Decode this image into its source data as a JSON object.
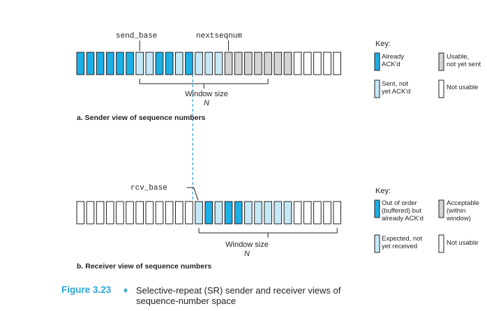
{
  "colors": {
    "acked": "#1bafe6",
    "sent_not_acked": "#c5e8f7",
    "usable": "#d3d4d6",
    "not_usable": "#ffffff",
    "outline": "#231f20",
    "dashed_line": "#2aa3d8",
    "caption_accent": "#2aa3d8"
  },
  "sender": {
    "slots": [
      "acked",
      "acked",
      "acked",
      "acked",
      "acked",
      "acked",
      "sent",
      "sent",
      "acked",
      "acked",
      "sent",
      "acked",
      "sent",
      "sent",
      "sent",
      "usable",
      "usable",
      "usable",
      "usable",
      "usable",
      "usable",
      "usable",
      "empty",
      "empty",
      "empty",
      "empty",
      "empty"
    ],
    "send_base_label": "send_base",
    "nextseqnum_label": "nextseqnum",
    "window_label": "Window size",
    "window_symbol": "N",
    "subcaption": "a. Sender view of sequence numbers",
    "key": {
      "title": "Key:",
      "items": [
        {
          "color": "acked",
          "label": [
            "Already",
            "ACK'd"
          ]
        },
        {
          "color": "usable",
          "label": [
            "Usable,",
            "not yet sent"
          ]
        },
        {
          "color": "sent_not_acked",
          "label": [
            "Sent, not",
            "yet ACK'd"
          ]
        },
        {
          "color": "not_usable",
          "label": [
            "Not usable"
          ]
        }
      ]
    }
  },
  "receiver": {
    "slots": [
      "empty",
      "empty",
      "empty",
      "empty",
      "empty",
      "empty",
      "empty",
      "empty",
      "empty",
      "empty",
      "empty",
      "empty",
      "sent",
      "acked",
      "sent",
      "acked",
      "acked",
      "sent",
      "sent",
      "sent",
      "sent",
      "sent",
      "empty",
      "empty",
      "empty",
      "empty",
      "empty"
    ],
    "rcv_base_label": "rcv_base",
    "window_label": "Window size",
    "window_symbol": "N",
    "subcaption": "b. Receiver view of sequence numbers",
    "key": {
      "title": "Key:",
      "items": [
        {
          "color": "acked",
          "label": [
            "Out of order",
            "(buffered) but",
            "already ACK'd"
          ]
        },
        {
          "color": "usable",
          "label": [
            "Acceptable",
            "(within",
            "window)"
          ]
        },
        {
          "color": "sent_not_acked",
          "label": [
            "Expected, not",
            "yet received"
          ]
        },
        {
          "color": "not_usable",
          "label": [
            "Not usable"
          ]
        }
      ]
    }
  },
  "caption": {
    "figure_number": "Figure 3.23",
    "separator": "♦",
    "text": "Selective-repeat (SR) sender and receiver views of sequence-number space"
  }
}
